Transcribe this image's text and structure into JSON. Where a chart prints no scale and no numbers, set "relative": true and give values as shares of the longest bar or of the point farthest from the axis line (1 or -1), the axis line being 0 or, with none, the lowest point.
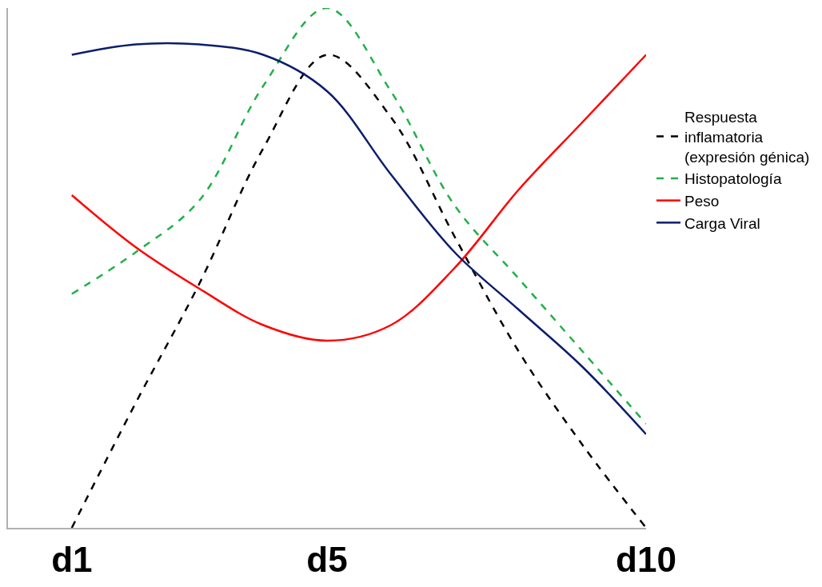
{
  "chart_data": {
    "type": "line",
    "relative": true,
    "categories": [
      "d1",
      null,
      null,
      null,
      "d5",
      null,
      null,
      null,
      null,
      "d10"
    ],
    "tick_labels": "x",
    "legend": "right",
    "marker": "none",
    "series": [
      {
        "name": "Respuesta\ninflamatoria\n(expresión génica)",
        "color": "#000000",
        "line_style": "dashed",
        "values": [
          0,
          0.24,
          0.47,
          0.73,
          0.91,
          0.79,
          0.56,
          0.34,
          0.16,
          0
        ]
      },
      {
        "name": "Histopatología",
        "color": "#22b04b",
        "line_style": "dashed",
        "values": [
          0.45,
          0.53,
          0.63,
          0.85,
          1.0,
          0.84,
          0.62,
          0.48,
          0.34,
          0.2
        ]
      },
      {
        "name": "Peso",
        "color": "#ff0000",
        "line_style": "solid",
        "values": [
          0.64,
          0.54,
          0.46,
          0.39,
          0.36,
          0.39,
          0.5,
          0.65,
          0.78,
          0.91
        ]
      },
      {
        "name": "Carga Viral",
        "color": "#0d1d6b",
        "line_style": "solid",
        "values": [
          0.91,
          0.93,
          0.93,
          0.91,
          0.84,
          0.68,
          0.53,
          0.42,
          0.31,
          0.18
        ]
      }
    ]
  }
}
